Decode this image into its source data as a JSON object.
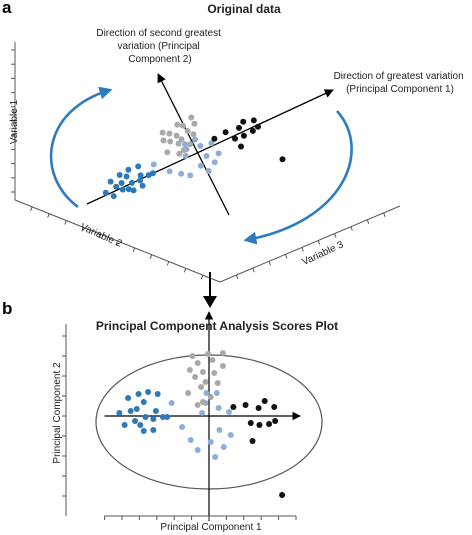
{
  "panel_a": {
    "panel_label": "a",
    "title": "Original data",
    "annotation_pc2": [
      "Direction of second greatest",
      "variation (Principal",
      "Component 2)"
    ],
    "annotation_pc1": [
      "Direction of greatest variation",
      "(Principal Component 1)"
    ],
    "axis_labels": {
      "vertical": "Variable 1",
      "left": "Variable 2",
      "right": "Variable 3"
    }
  },
  "panel_b": {
    "panel_label": "b",
    "title": "Principal Component Analysis Scores Plot",
    "xlabel": "Principal Component 1",
    "ylabel": "Principal Component 2"
  },
  "colors": {
    "dark_blue": "#2e7ab8",
    "light_blue": "#8eaed8",
    "gray": "#a9a9a9",
    "black": "#111111",
    "arrow_blue": "#2f7bbf"
  },
  "chart_data": {
    "type": "scatter",
    "title": "Principal Component Analysis Scores Plot",
    "xlabel": "Principal Component 1",
    "ylabel": "Principal Component 2",
    "grid": false,
    "series": [
      {
        "color": "#2e7ab8",
        "x": [
          -10.3,
          -9.7,
          -9.3,
          -9.0,
          -8.5,
          -8.3,
          -8.1,
          -7.9,
          -7.5,
          -7.5,
          -7.3,
          -7.0,
          -6.4,
          -6.4,
          -6.1,
          -5.9,
          -5.3,
          -4.8
        ],
        "y": [
          0.3,
          -0.9,
          1.8,
          0.5,
          -0.5,
          0.7,
          2.2,
          -0.9,
          -1.5,
          1.4,
          -0.1,
          2.4,
          -1.4,
          -0.3,
          0.5,
          2.2,
          -0.1,
          -0.1
        ]
      },
      {
        "color": "#8eaed8",
        "x": [
          -4.3,
          -3.1,
          -2.1,
          -1.3,
          -0.8,
          -0.4,
          -0.3,
          0.2,
          0.7,
          0.9,
          1.1,
          1.2,
          1.7,
          2.3,
          2.5
        ],
        "y": [
          1.3,
          -1.1,
          -2.4,
          -3.4,
          0.3,
          1.3,
          2.3,
          -2.6,
          -4.1,
          2.3,
          0.8,
          -1.4,
          -3.1,
          0.4,
          -1.9
        ]
      },
      {
        "color": "#a9a9a9",
        "x": [
          -2.4,
          -2.2,
          -1.9,
          -1.6,
          -1.3,
          -1.3,
          -0.9,
          -0.7,
          -0.7,
          -0.4,
          -0.1,
          0.2,
          0.4,
          0.6,
          1.0,
          1.6,
          1.6
        ],
        "y": [
          2.3,
          4.6,
          6.0,
          3.9,
          1.1,
          5.3,
          2.9,
          1.4,
          4.4,
          3.4,
          6.2,
          1.9,
          5.6,
          4.3,
          3.3,
          5.0,
          6.3
        ]
      },
      {
        "color": "#111111",
        "x": [
          2.8,
          4.2,
          4.8,
          5.0,
          5.7,
          5.8,
          6.4,
          6.9,
          7.5,
          7.6,
          8.4
        ],
        "y": [
          0.9,
          1.1,
          -0.7,
          -2.5,
          0.8,
          -0.9,
          1.5,
          -0.8,
          0.9,
          -0.5,
          -7.9
        ]
      }
    ],
    "xlim": [
      -12,
      10
    ],
    "ylim": [
      -10,
      10
    ]
  }
}
